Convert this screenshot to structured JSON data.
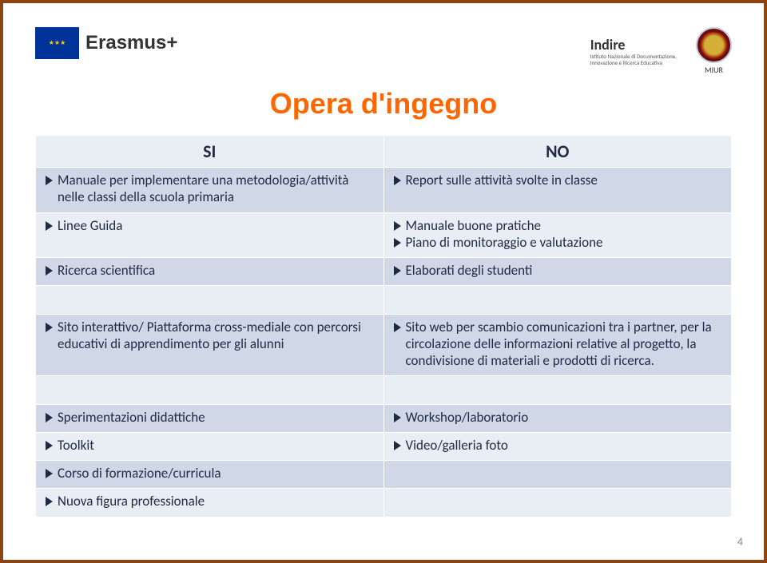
{
  "header": {
    "erasmus_label": "Erasmus+",
    "indire_label": "Indire",
    "indire_sub1": "Istituto Nazionale di Documentazione,",
    "indire_sub2": "Innovazione e Ricerca Educativa",
    "miur_label": "MIUR"
  },
  "title": "Opera d'ingegno",
  "table": {
    "header_si": "SI",
    "header_no": "NO",
    "rows": [
      {
        "left": [
          "Manuale per implementare una metodologia/attività nelle classi della scuola primaria"
        ],
        "right": [
          "Report sulle attività svolte in classe"
        ]
      },
      {
        "left": [
          "Linee Guida"
        ],
        "right": [
          "Manuale buone pratiche",
          "Piano di monitoraggio e valutazione"
        ]
      },
      {
        "left": [
          "Ricerca scientifica"
        ],
        "right": [
          "Elaborati degli studenti"
        ]
      },
      {
        "left": [],
        "right": []
      },
      {
        "left": [
          "Sito interattivo/ Piattaforma cross-mediale con percorsi educativi di apprendimento per gli alunni"
        ],
        "right": [
          "Sito web per scambio comunicazioni tra i partner, per la circolazione delle informazioni relative al progetto, la condivisione di materiali e prodotti di ricerca."
        ]
      },
      {
        "left": [],
        "right": []
      },
      {
        "left": [
          "Sperimentazioni didattiche"
        ],
        "right": [
          "Workshop/laboratorio"
        ]
      },
      {
        "left": [
          "Toolkit"
        ],
        "right": [
          "Video/galleria foto"
        ]
      },
      {
        "left": [
          "Corso di formazione/curricula"
        ],
        "right": []
      },
      {
        "left": [
          "Nuova figura professionale"
        ],
        "right": []
      }
    ]
  },
  "page_number": "4",
  "colors": {
    "title": "#ff6600",
    "band_a": "#d0d8e7",
    "band_b": "#e9edf4",
    "text": "#1f2a44",
    "frame": "#8b4513"
  }
}
